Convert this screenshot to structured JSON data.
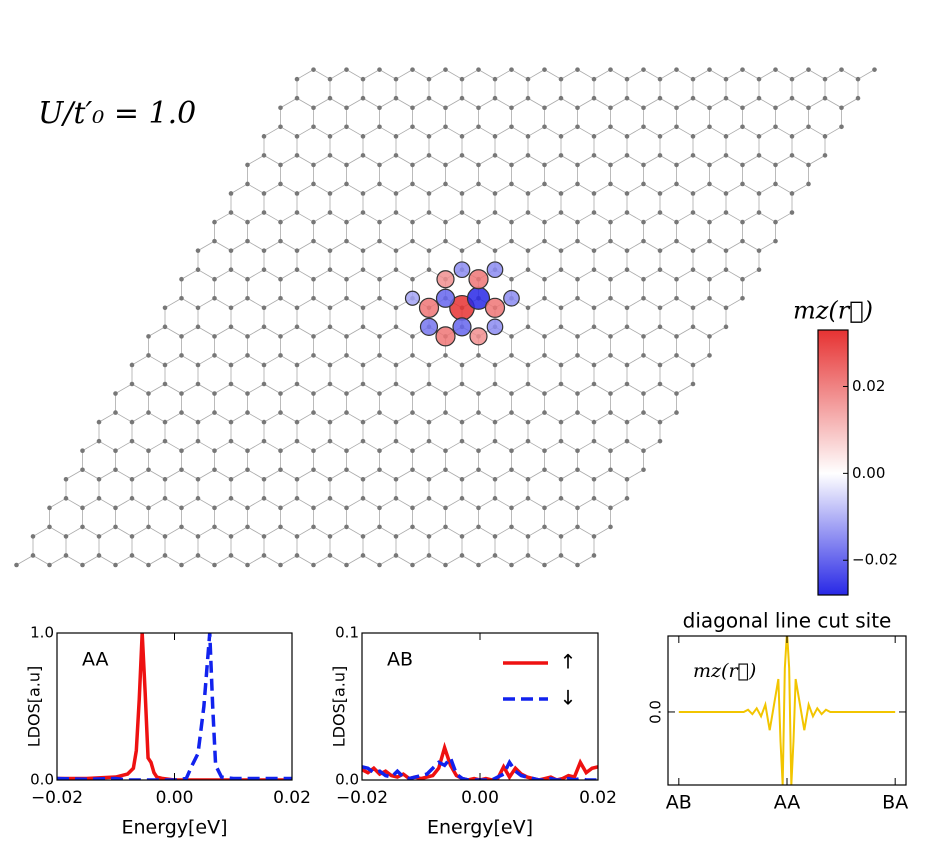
{
  "chart_data": [
    {
      "type": "lattice",
      "title": "U/t′₀ = 1.0",
      "colorbar_label": "𝑚𝑧(𝑟⃗)",
      "clim": [
        -0.028,
        0.033
      ],
      "cticks": [
        {
          "value": -0.02,
          "label": "−0.02"
        },
        {
          "value": 0,
          "label": "0.00"
        },
        {
          "value": 0.02,
          "label": "0.02"
        }
      ],
      "x": [
        9,
        9.333,
        8.333,
        9.333,
        10,
        9,
        8,
        10,
        8,
        9,
        10.333,
        8.333,
        8.333,
        10.333,
        7.333,
        9.333
      ],
      "y": [
        9,
        9.333,
        9.333,
        8.333,
        9,
        10,
        10,
        8,
        9,
        8,
        8.333,
        10.333,
        8.333,
        9.333,
        9.333,
        10.333
      ],
      "values": [
        0.033,
        -0.028,
        -0.02,
        -0.02,
        0.022,
        0.022,
        0.018,
        0.018,
        0.022,
        0.022,
        -0.015,
        -0.015,
        -0.018,
        -0.015,
        -0.012,
        -0.015
      ]
    },
    {
      "type": "line",
      "annotation": "AA",
      "xlabel": "Energy[eV]",
      "ylabel": "LDOS[a.u]",
      "xlim": [
        -0.02,
        0.02
      ],
      "xticks": [
        {
          "value": -0.02,
          "label": "−0.02"
        },
        {
          "value": 0,
          "label": "0.00"
        },
        {
          "value": 0.02,
          "label": "0.02"
        }
      ],
      "ylim": [
        0,
        1
      ],
      "yticks": [
        {
          "value": 0,
          "label": "0.0"
        },
        {
          "value": 1,
          "label": "1.0"
        }
      ],
      "x": [
        -0.02,
        -0.015,
        -0.01,
        -0.008,
        -0.007,
        -0.0065,
        -0.006,
        -0.0055,
        -0.005,
        -0.0045,
        -0.004,
        -0.0035,
        -0.003,
        -0.002,
        0,
        0.002,
        0.003,
        0.004,
        0.005,
        0.0055,
        0.006,
        0.0065,
        0.007,
        0.008,
        0.01,
        0.015,
        0.02
      ],
      "series": [
        {
          "color": "#ee1111",
          "dash": false,
          "values": [
            0.01,
            0.01,
            0.02,
            0.04,
            0.08,
            0.2,
            0.55,
            1.0,
            0.6,
            0.15,
            0.12,
            0.05,
            0.02,
            0.01,
            0,
            0,
            0,
            0,
            0,
            0,
            0,
            0,
            0,
            0,
            0,
            0,
            0
          ]
        },
        {
          "color": "#1122ee",
          "dash": true,
          "values": [
            0.01,
            0.005,
            0.01,
            0,
            0,
            0,
            0,
            0,
            0,
            0,
            0,
            0,
            0,
            0,
            0,
            0.01,
            0.1,
            0.18,
            0.5,
            0.75,
            1.0,
            0.5,
            0.1,
            0.02,
            0.01,
            0.01,
            0.01
          ]
        }
      ]
    },
    {
      "type": "line",
      "annotation": "AB",
      "xlabel": "Energy[eV]",
      "ylabel": "LDOS[a.u]",
      "legend": "upper right",
      "xlim": [
        -0.02,
        0.02
      ],
      "xticks": [
        {
          "value": -0.02,
          "label": "−0.02"
        },
        {
          "value": 0,
          "label": "0.00"
        },
        {
          "value": 0.02,
          "label": "0.02"
        }
      ],
      "ylim": [
        0,
        0.1
      ],
      "yticks": [
        {
          "value": 0,
          "label": "0.0"
        },
        0.1
      ],
      "x": [
        -0.02,
        -0.019,
        -0.018,
        -0.017,
        -0.016,
        -0.015,
        -0.014,
        -0.013,
        -0.012,
        -0.011,
        -0.01,
        -0.009,
        -0.008,
        -0.007,
        -0.006,
        -0.005,
        -0.004,
        -0.003,
        -0.002,
        -0.001,
        0,
        0.001,
        0.002,
        0.003,
        0.004,
        0.005,
        0.006,
        0.007,
        0.008,
        0.009,
        0.01,
        0.011,
        0.012,
        0.013,
        0.014,
        0.015,
        0.016,
        0.017,
        0.018,
        0.019,
        0.02
      ],
      "series": [
        {
          "name": "↑",
          "color": "#ee1111",
          "dash": false,
          "values": [
            0.007,
            0.005,
            0.008,
            0.004,
            0.006,
            0.003,
            0.002,
            0.004,
            0.001,
            0.002,
            0.001,
            0.002,
            0.003,
            0.008,
            0.022,
            0.01,
            0.003,
            0.001,
            0,
            0.001,
            0,
            0.001,
            0,
            0.001,
            0.009,
            0.002,
            0.008,
            0.004,
            0.002,
            0.001,
            0,
            0.001,
            0.002,
            0,
            0.001,
            0.003,
            0.002,
            0.012,
            0.005,
            0.008,
            0.009
          ]
        },
        {
          "name": "↓",
          "color": "#1122ee",
          "dash": true,
          "values": [
            0.009,
            0.008,
            0.005,
            0.006,
            0.003,
            0.002,
            0.006,
            0.002,
            0.001,
            0.002,
            0.003,
            0.004,
            0.008,
            0.012,
            0.01,
            0.015,
            0.004,
            0.001,
            0,
            0,
            0,
            0,
            0,
            0.002,
            0.004,
            0.012,
            0.006,
            0.003,
            0.002,
            0.001,
            0,
            0,
            0.001,
            0,
            0,
            0.001,
            0,
            0.001,
            0,
            0,
            0
          ]
        }
      ]
    },
    {
      "type": "line",
      "title": "diagonal line cut site",
      "annotation": "𝑚𝑧(𝑟⃗)",
      "xlim": [
        -0.05,
        1.05
      ],
      "xticks": [
        {
          "value": 0,
          "label": "AB"
        },
        {
          "value": 0.5,
          "label": "AA"
        },
        {
          "value": 1,
          "label": "BA"
        }
      ],
      "ylim": [
        -1,
        1.04
      ],
      "yticks": [
        {
          "value": 0,
          "label": "0.0"
        }
      ],
      "x": [
        0,
        0.1,
        0.2,
        0.3,
        0.32,
        0.34,
        0.36,
        0.38,
        0.4,
        0.42,
        0.44,
        0.46,
        0.47,
        0.48,
        0.49,
        0.5,
        0.51,
        0.52,
        0.53,
        0.54,
        0.56,
        0.58,
        0.6,
        0.62,
        0.64,
        0.66,
        0.68,
        0.7,
        0.8,
        0.9,
        1
      ],
      "series": [
        {
          "color": "#f2c500",
          "dash": false,
          "values": [
            0,
            0,
            0,
            0,
            0.03,
            -0.03,
            0.05,
            -0.06,
            0.1,
            -0.25,
            0.1,
            0.45,
            -0.4,
            -1.0,
            0.6,
            1.1,
            0.6,
            -1.0,
            -0.4,
            0.45,
            0.1,
            -0.25,
            0.1,
            -0.06,
            0.05,
            -0.03,
            0.03,
            0,
            0,
            0,
            0
          ]
        }
      ]
    }
  ]
}
